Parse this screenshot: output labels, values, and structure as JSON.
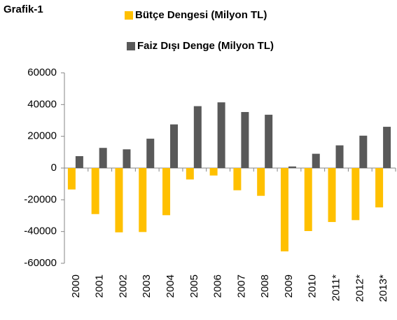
{
  "chart_data": {
    "type": "bar",
    "title": "Grafik-1",
    "categories": [
      "2000",
      "2001",
      "2002",
      "2003",
      "2004",
      "2005",
      "2006",
      "2007",
      "2008",
      "2009",
      "2010",
      "2011*",
      "2012*",
      "2013*"
    ],
    "series": [
      {
        "name": "Bütçe Dengesi (Milyon TL)",
        "color": "#ffc000",
        "values": [
          -13500,
          -29000,
          -40500,
          -40300,
          -29700,
          -7200,
          -4700,
          -14000,
          -17500,
          -52500,
          -39700,
          -34000,
          -32800,
          -24800
        ]
      },
      {
        "name": "Faiz Dışı Denge (Milyon TL)",
        "color": "#595959",
        "values": [
          7500,
          12700,
          11800,
          18500,
          27500,
          39000,
          41400,
          35300,
          33600,
          1000,
          9000,
          14300,
          20400,
          26000
        ]
      }
    ],
    "ylim": [
      -60000,
      60000
    ],
    "yticks": [
      -60000,
      -40000,
      -20000,
      0,
      20000,
      40000,
      60000
    ],
    "grid": false
  }
}
